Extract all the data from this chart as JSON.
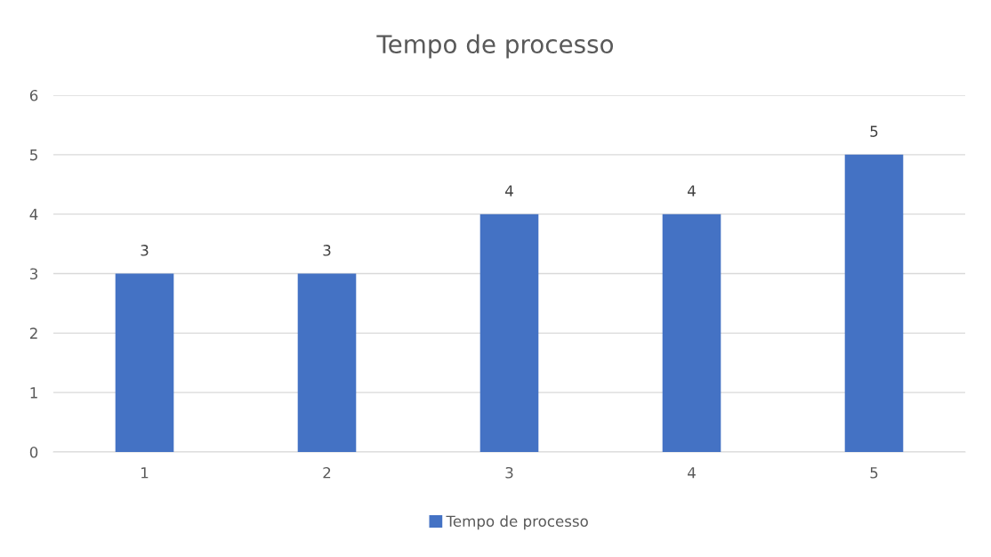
{
  "chart_data": {
    "type": "bar",
    "title": "Tempo de processo",
    "categories": [
      "1",
      "2",
      "3",
      "4",
      "5"
    ],
    "series": [
      {
        "name": "Tempo de processo",
        "color": "#4472c4",
        "values": [
          3,
          3,
          4,
          4,
          5
        ]
      }
    ],
    "ylim": [
      0,
      6
    ],
    "yticks": [
      0,
      1,
      2,
      3,
      4,
      5,
      6
    ],
    "grid": "y",
    "legend": "bottom",
    "data_labels": true
  }
}
